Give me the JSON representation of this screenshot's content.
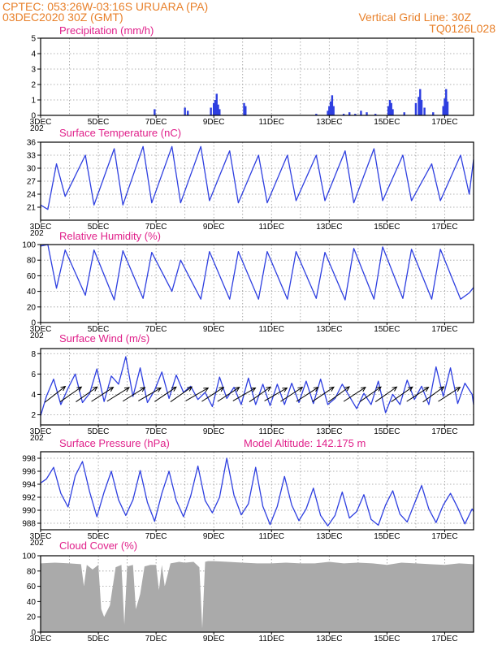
{
  "header": {
    "line1": "CPTEC:   053:26W-03:16S   URUARA (PA)",
    "line2": "03DEC2020 30Z (GMT)",
    "right1": "Vertical Grid Line: 30Z",
    "right2": "TQ0126L028"
  },
  "colors": {
    "header": "#e8802a",
    "title": "#e0208a",
    "series": "#2e3fe0",
    "cloud": "#aaaaaa",
    "arrow": "#000000"
  },
  "x_axis": {
    "start_day": 3,
    "end_day": 18,
    "tick_labels": [
      "3DEC",
      "5DEC",
      "7DEC",
      "9DEC",
      "11DEC",
      "13DEC",
      "15DEC",
      "17DEC"
    ],
    "tick_days": [
      3,
      5,
      7,
      9,
      11,
      13,
      15,
      17
    ],
    "grid_days": [
      4,
      5,
      6,
      7,
      8,
      9,
      10,
      11,
      12,
      13,
      14,
      15,
      16,
      17
    ],
    "year_stub": "202"
  },
  "chart_data": [
    {
      "type": "bar",
      "title": "Precipitation (mm/h)",
      "ylim": [
        0,
        5
      ],
      "yticks": [
        "0",
        "1",
        "2",
        "3",
        "4",
        "5"
      ],
      "series": [
        {
          "x_days": [
            6.95,
            8.0,
            8.1,
            8.9,
            9.0,
            9.05,
            9.1,
            9.15,
            9.2,
            10.05,
            10.1,
            12.55,
            12.95,
            13.0,
            13.05,
            13.1,
            13.15,
            13.5,
            13.7,
            13.9,
            14.1,
            14.3,
            14.6,
            15.05,
            15.1,
            15.15,
            15.2,
            15.6,
            16.0,
            16.1,
            16.15,
            16.2,
            16.3,
            16.6,
            16.95,
            17.0,
            17.05,
            17.1
          ],
          "values": [
            0.4,
            0.5,
            0.3,
            0.5,
            0.8,
            1.0,
            1.4,
            0.7,
            0.4,
            0.8,
            0.6,
            0.1,
            0.3,
            0.6,
            0.9,
            1.3,
            0.6,
            0.1,
            0.2,
            0.1,
            0.3,
            0.2,
            0.1,
            0.6,
            1.0,
            0.8,
            0.4,
            0.2,
            0.8,
            1.2,
            1.7,
            1.0,
            0.5,
            0.2,
            0.6,
            1.1,
            1.7,
            0.9
          ]
        }
      ]
    },
    {
      "type": "line",
      "title": "Surface Temperature (nC)",
      "ylim": [
        18,
        36
      ],
      "yticks": [
        "21",
        "24",
        "27",
        "30",
        "33",
        "36"
      ],
      "series": [
        {
          "x_days": [
            3.0,
            3.25,
            3.55,
            3.85,
            4.55,
            4.85,
            5.55,
            5.85,
            6.55,
            6.85,
            7.55,
            7.85,
            8.55,
            8.85,
            9.55,
            9.85,
            10.55,
            10.85,
            11.55,
            11.85,
            12.55,
            12.85,
            13.55,
            13.85,
            14.55,
            14.85,
            15.55,
            15.85,
            16.55,
            16.85,
            17.55,
            17.85,
            18.0
          ],
          "values": [
            21.5,
            20.5,
            31,
            23.5,
            33,
            21.5,
            34.5,
            21.5,
            35,
            22,
            35,
            22,
            35,
            22.5,
            34,
            22,
            33,
            22,
            33,
            22.5,
            33,
            22.5,
            34,
            22,
            34.5,
            22.5,
            33,
            22.5,
            31,
            22.5,
            33,
            24,
            32
          ]
        }
      ]
    },
    {
      "type": "line",
      "title": "Relative Humidity (%)",
      "ylim": [
        0,
        100
      ],
      "yticks": [
        "0",
        "20",
        "40",
        "60",
        "80",
        "100"
      ],
      "series": [
        {
          "x_days": [
            3.0,
            3.25,
            3.55,
            3.85,
            4.55,
            4.85,
            5.55,
            5.85,
            6.55,
            6.85,
            7.55,
            7.85,
            8.55,
            8.85,
            9.55,
            9.85,
            10.55,
            10.85,
            11.55,
            11.85,
            12.55,
            12.85,
            13.55,
            13.85,
            14.55,
            14.85,
            15.55,
            15.85,
            16.55,
            16.85,
            17.55,
            17.85,
            18.0
          ],
          "values": [
            98,
            100,
            44,
            93,
            35,
            93,
            29,
            92,
            31,
            90,
            40,
            80,
            30,
            91,
            30,
            91,
            30,
            91,
            30,
            91,
            31,
            90,
            29,
            95,
            30,
            97,
            31,
            94,
            30,
            94,
            30,
            38,
            45
          ]
        }
      ]
    },
    {
      "type": "line",
      "title": "Surface Wind (m/s)",
      "ylim": [
        1,
        8.5
      ],
      "yticks": [
        "2",
        "4",
        "6",
        "8"
      ],
      "series": [
        {
          "x_days": [
            3.0,
            3.2,
            3.45,
            3.7,
            3.95,
            4.2,
            4.45,
            4.7,
            4.95,
            5.2,
            5.45,
            5.7,
            5.95,
            6.2,
            6.45,
            6.7,
            6.95,
            7.2,
            7.45,
            7.7,
            7.95,
            8.2,
            8.45,
            8.7,
            8.95,
            9.2,
            9.45,
            9.7,
            9.95,
            10.2,
            10.45,
            10.7,
            10.95,
            11.2,
            11.45,
            11.7,
            11.95,
            12.2,
            12.45,
            12.7,
            12.95,
            13.2,
            13.45,
            13.7,
            13.95,
            14.2,
            14.45,
            14.7,
            14.95,
            15.2,
            15.45,
            15.7,
            15.95,
            16.2,
            16.45,
            16.7,
            16.95,
            17.2,
            17.45,
            17.7,
            17.95,
            18.0
          ],
          "values": [
            1.9,
            3.8,
            5.5,
            3.0,
            4.6,
            6.0,
            3.2,
            4.1,
            6.5,
            3.3,
            5.8,
            5.0,
            7.7,
            3.8,
            6.6,
            3.2,
            4.4,
            6.2,
            3.6,
            5.9,
            4.2,
            4.8,
            3.5,
            4.2,
            2.8,
            5.7,
            3.6,
            4.7,
            3.0,
            5.6,
            3.0,
            5.0,
            2.9,
            5.0,
            3.0,
            5.1,
            3.2,
            5.3,
            3.1,
            5.5,
            3.0,
            3.6,
            5.0,
            3.8,
            2.6,
            4.1,
            3.0,
            5.3,
            2.2,
            4.0,
            3.0,
            5.4,
            3.5,
            4.8,
            3.0,
            6.7,
            3.8,
            6.6,
            3.1,
            5.1,
            4.0,
            3.0
          ]
        }
      ],
      "vectors_angle_deg": [
        38,
        35,
        35,
        33,
        32,
        32,
        30,
        34,
        35,
        30,
        33,
        33,
        30,
        35,
        30,
        33,
        33,
        34,
        36,
        33,
        35,
        35,
        35,
        33,
        36,
        33
      ]
    },
    {
      "type": "line",
      "title": "Surface Pressure (hPa)",
      "annotation": "Model Altitude: 142.175  m",
      "ylim": [
        987,
        999
      ],
      "yticks": [
        "988",
        "990",
        "992",
        "994",
        "996",
        "998"
      ],
      "series": [
        {
          "x_days": [
            3.0,
            3.2,
            3.45,
            3.7,
            3.95,
            4.2,
            4.45,
            4.7,
            4.95,
            5.2,
            5.45,
            5.7,
            5.95,
            6.2,
            6.45,
            6.7,
            6.95,
            7.2,
            7.45,
            7.7,
            7.95,
            8.2,
            8.45,
            8.7,
            8.95,
            9.2,
            9.45,
            9.7,
            9.95,
            10.2,
            10.45,
            10.7,
            10.95,
            11.2,
            11.45,
            11.7,
            11.95,
            12.2,
            12.45,
            12.7,
            12.95,
            13.2,
            13.45,
            13.7,
            13.95,
            14.2,
            14.45,
            14.7,
            14.95,
            15.2,
            15.45,
            15.7,
            15.95,
            16.2,
            16.45,
            16.7,
            16.95,
            17.2,
            17.45,
            17.7,
            17.95,
            18.0
          ],
          "values": [
            994.2,
            994.8,
            996.6,
            992.6,
            990.5,
            995.3,
            997.5,
            992.8,
            989.0,
            992.8,
            996.0,
            991.6,
            989.2,
            991.6,
            996.1,
            991.2,
            988.3,
            992.6,
            996.0,
            991.5,
            989.0,
            992.2,
            996.8,
            991.5,
            989.6,
            992.0,
            998.0,
            992.3,
            989.3,
            991.0,
            996.6,
            990.6,
            987.8,
            990.6,
            995.2,
            990.8,
            988.4,
            990.2,
            993.4,
            989.2,
            987.6,
            989.2,
            992.8,
            988.8,
            989.8,
            992.4,
            988.6,
            987.7,
            990.8,
            993.0,
            989.4,
            988.2,
            991.0,
            993.8,
            990.2,
            988.1,
            990.8,
            992.6,
            990.4,
            987.9,
            990.2,
            989.8
          ]
        }
      ]
    },
    {
      "type": "area",
      "title": "Cloud Cover (%)",
      "ylim": [
        0,
        100
      ],
      "yticks": [
        "0",
        "20",
        "40",
        "60",
        "80",
        "100"
      ],
      "series": [
        {
          "x_days": [
            3.0,
            3.5,
            4.0,
            4.4,
            4.5,
            4.6,
            4.8,
            5.0,
            5.1,
            5.2,
            5.4,
            5.6,
            5.8,
            5.9,
            6.0,
            6.2,
            6.3,
            6.45,
            6.6,
            6.8,
            7.0,
            7.1,
            7.2,
            7.3,
            7.5,
            7.8,
            8.0,
            8.3,
            8.5,
            8.6,
            8.7,
            8.8,
            9.0,
            9.5,
            10.0,
            10.5,
            11.0,
            11.5,
            12.0,
            12.5,
            13.0,
            13.5,
            14.0,
            14.5,
            15.0,
            15.5,
            16.0,
            16.5,
            17.0,
            17.5,
            18.0
          ],
          "values": [
            90,
            91,
            90,
            89,
            60,
            88,
            82,
            88,
            30,
            20,
            35,
            85,
            88,
            10,
            86,
            88,
            30,
            50,
            86,
            88,
            88,
            55,
            88,
            60,
            90,
            92,
            91,
            92,
            85,
            5,
            92,
            93,
            93,
            92,
            91,
            90,
            90,
            91,
            90,
            90,
            92,
            90,
            91,
            90,
            88,
            91,
            90,
            89,
            88,
            90,
            89
          ]
        }
      ]
    }
  ]
}
